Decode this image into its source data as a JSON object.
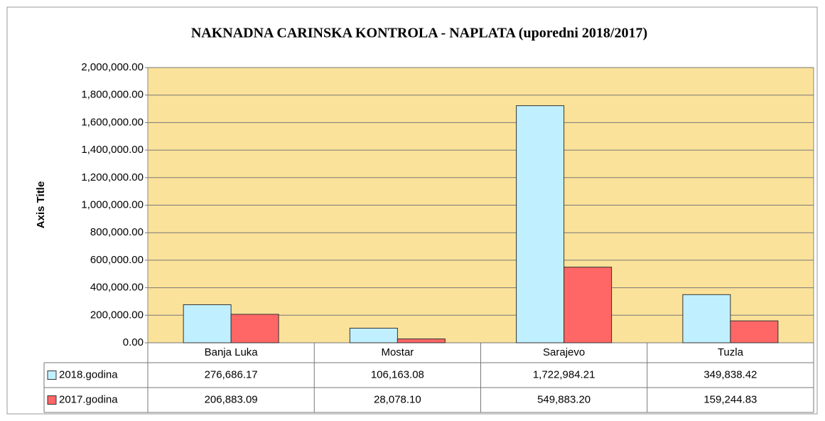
{
  "chart_data": {
    "type": "bar",
    "title": "NAKNADNA CARINSKA KONTROLA - NAPLATA (uporedni 2018/2017)",
    "y_axis_label": "Axis Title",
    "categories": [
      "Banja Luka",
      "Mostar",
      "Sarajevo",
      "Tuzla"
    ],
    "series": [
      {
        "name": "2018.godina",
        "color": "#c0f0ff",
        "values": [
          276686.17,
          106163.08,
          1722984.21,
          349838.42
        ],
        "value_labels": [
          "276,686.17",
          "106,163.08",
          "1,722,984.21",
          "349,838.42"
        ]
      },
      {
        "name": "2017.godina",
        "color": "#ff6666",
        "values": [
          206883.09,
          28078.1,
          549883.2,
          159244.83
        ],
        "value_labels": [
          "206,883.09",
          "28,078.10",
          "549,883.20",
          "159,244.83"
        ]
      }
    ],
    "ylim": [
      0,
      2000000
    ],
    "yticks": [
      {
        "value": 0,
        "label": "0.00"
      },
      {
        "value": 200000,
        "label": "200,000.00"
      },
      {
        "value": 400000,
        "label": "400,000.00"
      },
      {
        "value": 600000,
        "label": "600,000.00"
      },
      {
        "value": 800000,
        "label": "800,000.00"
      },
      {
        "value": 1000000,
        "label": "1,000,000.00"
      },
      {
        "value": 1200000,
        "label": "1,200,000.00"
      },
      {
        "value": 1400000,
        "label": "1,400,000.00"
      },
      {
        "value": 1600000,
        "label": "1,600,000.00"
      },
      {
        "value": 1800000,
        "label": "1,800,000.00"
      },
      {
        "value": 2000000,
        "label": "2,000,000.00"
      }
    ],
    "grid": true,
    "plot_background": "#fbe29a"
  }
}
